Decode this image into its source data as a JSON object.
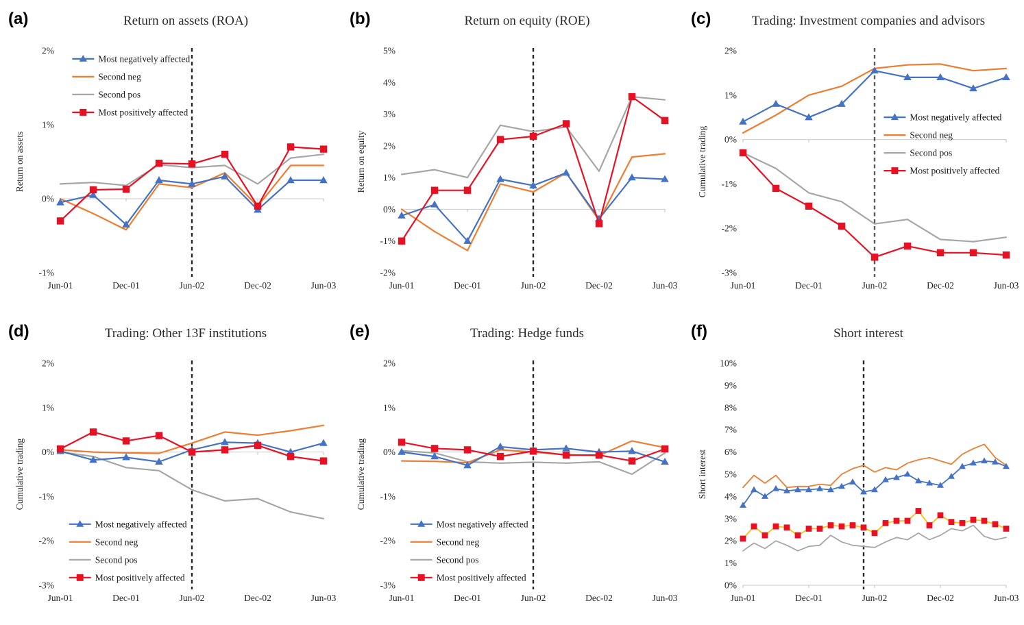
{
  "figure": {
    "background": "#ffffff",
    "event_line_style": "dashed"
  },
  "series_defs": [
    {
      "name": "Most negatively affected",
      "color": "#4472c4",
      "marker": "triangle"
    },
    {
      "name": "Second neg",
      "color": "#ed7d31",
      "marker": "none"
    },
    {
      "name": "Second pos",
      "color": "#a6a6a6",
      "marker": "none"
    },
    {
      "name": "Most positively affected",
      "color": "#e81123",
      "marker": "square"
    }
  ],
  "chart_data": [
    {
      "id": "a",
      "letter": "(a)",
      "type": "line",
      "title": "Return on assets (ROA)",
      "ylabel": "Return on assets",
      "ylim": [
        -1,
        2
      ],
      "yticks": [
        2,
        1,
        0,
        -1
      ],
      "categories": [
        "Jun-01",
        "Sep-01",
        "Dec-01",
        "Mar-02",
        "Jun-02",
        "Sep-02",
        "Dec-02",
        "Mar-03",
        "Jun-03"
      ],
      "x_ticks": {
        "indices": [
          0,
          2,
          4,
          6,
          8
        ],
        "labels": [
          "Jun-01",
          "Dec-01",
          "Jun-02",
          "Dec-02",
          "Jun-03"
        ]
      },
      "event_line_index": 4,
      "event_line_color": "#262626",
      "legend": "top-left",
      "series": [
        {
          "name": "Most negatively affected",
          "values": [
            -0.05,
            0.05,
            -0.35,
            0.25,
            0.2,
            0.3,
            -0.15,
            0.25,
            0.25
          ]
        },
        {
          "name": "Second neg",
          "values": [
            0.0,
            -0.2,
            -0.42,
            0.2,
            0.15,
            0.35,
            -0.1,
            0.45,
            0.45
          ]
        },
        {
          "name": "Second pos",
          "values": [
            0.2,
            0.22,
            0.18,
            0.46,
            0.42,
            0.45,
            0.2,
            0.55,
            0.6
          ]
        },
        {
          "name": "Most positively affected",
          "values": [
            -0.3,
            0.12,
            0.13,
            0.48,
            0.47,
            0.6,
            -0.1,
            0.7,
            0.67
          ]
        }
      ]
    },
    {
      "id": "b",
      "letter": "(b)",
      "type": "line",
      "title": "Return on equity (ROE)",
      "ylabel": "Return on equity",
      "ylim": [
        -2,
        5
      ],
      "yticks": [
        5,
        4,
        3,
        2,
        1,
        0,
        -1,
        -2
      ],
      "categories": [
        "Jun-01",
        "Sep-01",
        "Dec-01",
        "Mar-02",
        "Jun-02",
        "Sep-02",
        "Dec-02",
        "Mar-03",
        "Jun-03"
      ],
      "x_ticks": {
        "indices": [
          0,
          2,
          4,
          6,
          8
        ],
        "labels": [
          "Jun-01",
          "Dec-01",
          "Jun-02",
          "Dec-02",
          "Jun-03"
        ]
      },
      "event_line_index": 4,
      "event_line_color": "#262626",
      "legend": "none",
      "series": [
        {
          "name": "Most negatively affected",
          "values": [
            -0.2,
            0.15,
            -1.0,
            0.95,
            0.75,
            1.15,
            -0.3,
            1.0,
            0.95
          ]
        },
        {
          "name": "Second neg",
          "values": [
            0.0,
            -0.7,
            -1.3,
            0.8,
            0.55,
            1.15,
            -0.35,
            1.65,
            1.75
          ]
        },
        {
          "name": "Second pos",
          "values": [
            1.1,
            1.25,
            1.0,
            2.65,
            2.45,
            2.6,
            1.2,
            3.55,
            3.45
          ]
        },
        {
          "name": "Most positively affected",
          "values": [
            -1.0,
            0.6,
            0.6,
            2.2,
            2.3,
            2.7,
            -0.45,
            3.55,
            2.8
          ]
        }
      ]
    },
    {
      "id": "c",
      "letter": "(c)",
      "type": "line",
      "title": "Trading: Investment companies and advisors",
      "ylabel": "Cumulative trading",
      "ylim": [
        -3,
        2
      ],
      "yticks": [
        2,
        1,
        0,
        -1,
        -2,
        -3
      ],
      "categories": [
        "Jun-01",
        "Sep-01",
        "Dec-01",
        "Mar-02",
        "Jun-02",
        "Sep-02",
        "Dec-02",
        "Mar-03",
        "Jun-03"
      ],
      "x_ticks": {
        "indices": [
          0,
          2,
          4,
          6,
          8
        ],
        "labels": [
          "Jun-01",
          "Dec-01",
          "Jun-02",
          "Dec-02",
          "Jun-03"
        ]
      },
      "event_line_index": 4,
      "event_line_color": "#595959",
      "legend": "middle-right",
      "series": [
        {
          "name": "Most negatively affected",
          "values": [
            0.4,
            0.8,
            0.5,
            0.8,
            1.55,
            1.4,
            1.4,
            1.15,
            1.4
          ]
        },
        {
          "name": "Second neg",
          "values": [
            0.15,
            0.55,
            1.0,
            1.2,
            1.6,
            1.68,
            1.7,
            1.55,
            1.6
          ]
        },
        {
          "name": "Second pos",
          "values": [
            -0.3,
            -0.65,
            -1.2,
            -1.4,
            -1.9,
            -1.8,
            -2.25,
            -2.3,
            -2.2
          ]
        },
        {
          "name": "Most positively affected",
          "values": [
            -0.3,
            -1.1,
            -1.5,
            -1.95,
            -2.65,
            -2.4,
            -2.55,
            -2.55,
            -2.6
          ]
        }
      ]
    },
    {
      "id": "d",
      "letter": "(d)",
      "type": "line",
      "title": "Trading: Other 13F institutions",
      "ylabel": "Cumulative trading",
      "ylim": [
        -3,
        2
      ],
      "yticks": [
        2,
        1,
        0,
        -1,
        -2,
        -3
      ],
      "categories": [
        "Jun-01",
        "Sep-01",
        "Dec-01",
        "Mar-02",
        "Jun-02",
        "Sep-02",
        "Dec-02",
        "Mar-03",
        "Jun-03"
      ],
      "x_ticks": {
        "indices": [
          0,
          2,
          4,
          6,
          8
        ],
        "labels": [
          "Jun-01",
          "Dec-01",
          "Jun-02",
          "Dec-02",
          "Jun-03"
        ]
      },
      "event_line_index": 4,
      "event_line_color": "#262626",
      "legend": "bottom-left",
      "series": [
        {
          "name": "Most negatively affected",
          "values": [
            0.02,
            -0.18,
            -0.12,
            -0.22,
            0.05,
            0.22,
            0.2,
            0.0,
            0.2
          ]
        },
        {
          "name": "Second neg",
          "values": [
            0.05,
            0.0,
            -0.02,
            -0.03,
            0.2,
            0.45,
            0.38,
            0.48,
            0.6
          ]
        },
        {
          "name": "Second pos",
          "values": [
            0.0,
            -0.1,
            -0.35,
            -0.42,
            -0.85,
            -1.1,
            -1.05,
            -1.35,
            -1.5
          ]
        },
        {
          "name": "Most positively affected",
          "values": [
            0.07,
            0.45,
            0.25,
            0.37,
            0.0,
            0.05,
            0.15,
            -0.1,
            -0.2
          ]
        }
      ]
    },
    {
      "id": "e",
      "letter": "(e)",
      "type": "line",
      "title": "Trading: Hedge funds",
      "ylabel": "Cumulative trading",
      "ylim": [
        -3,
        2
      ],
      "yticks": [
        2,
        1,
        0,
        -1,
        -2,
        -3
      ],
      "categories": [
        "Jun-01",
        "Sep-01",
        "Dec-01",
        "Mar-02",
        "Jun-02",
        "Sep-02",
        "Dec-02",
        "Mar-03",
        "Jun-03"
      ],
      "x_ticks": {
        "indices": [
          0,
          2,
          4,
          6,
          8
        ],
        "labels": [
          "Jun-01",
          "Dec-01",
          "Jun-02",
          "Dec-02",
          "Jun-03"
        ]
      },
      "event_line_index": 4,
      "event_line_color": "#262626",
      "legend": "bottom-left",
      "series": [
        {
          "name": "Most negatively affected",
          "values": [
            0.0,
            -0.1,
            -0.3,
            0.12,
            0.05,
            0.08,
            0.0,
            0.02,
            -0.22
          ]
        },
        {
          "name": "Second neg",
          "values": [
            -0.2,
            -0.21,
            -0.24,
            0.05,
            0.0,
            -0.06,
            -0.08,
            0.25,
            0.1
          ]
        },
        {
          "name": "Second pos",
          "values": [
            0.03,
            -0.02,
            -0.22,
            -0.25,
            -0.23,
            -0.25,
            -0.22,
            -0.5,
            -0.02
          ]
        },
        {
          "name": "Most positively affected",
          "values": [
            0.22,
            0.08,
            0.05,
            -0.1,
            0.02,
            -0.07,
            -0.07,
            -0.2,
            0.07
          ]
        }
      ]
    },
    {
      "id": "f",
      "letter": "(f)",
      "type": "line",
      "title": "Short interest",
      "ylabel": "Short interest",
      "ylim": [
        0,
        10
      ],
      "yticks": [
        10,
        9,
        8,
        7,
        6,
        5,
        4,
        3,
        2,
        1,
        0
      ],
      "categories": [
        "Jun-01",
        "Jul-01",
        "Aug-01",
        "Sep-01",
        "Oct-01",
        "Nov-01",
        "Dec-01",
        "Jan-02",
        "Feb-02",
        "Mar-02",
        "Apr-02",
        "May-02",
        "Jun-02",
        "Jul-02",
        "Aug-02",
        "Sep-02",
        "Oct-02",
        "Nov-02",
        "Dec-02",
        "Jan-03",
        "Feb-03",
        "Mar-03",
        "Apr-03",
        "May-03",
        "Jun-03"
      ],
      "x_ticks": {
        "indices": [
          0,
          6,
          12,
          18,
          24
        ],
        "labels": [
          "Jun-01",
          "Dec-01",
          "Jun-02",
          "Dec-02",
          "Jun-03"
        ]
      },
      "event_line_index": 11,
      "event_line_color": "#262626",
      "legend": "none",
      "series": [
        {
          "name": "Most negatively affected",
          "values": [
            3.6,
            4.3,
            4.0,
            4.35,
            4.25,
            4.3,
            4.3,
            4.35,
            4.3,
            4.45,
            4.65,
            4.2,
            4.3,
            4.75,
            4.85,
            5.0,
            4.7,
            4.6,
            4.5,
            4.9,
            5.35,
            5.5,
            5.6,
            5.55,
            5.35
          ]
        },
        {
          "name": "Second neg",
          "values": [
            4.4,
            4.95,
            4.6,
            4.95,
            4.4,
            4.45,
            4.45,
            4.55,
            4.5,
            5.0,
            5.25,
            5.4,
            5.1,
            5.3,
            5.2,
            5.5,
            5.65,
            5.75,
            5.6,
            5.45,
            5.9,
            6.15,
            6.35,
            5.75,
            5.4
          ]
        },
        {
          "name": "Second pos",
          "values": [
            1.55,
            1.9,
            1.65,
            2.0,
            1.8,
            1.55,
            1.75,
            1.8,
            2.25,
            1.95,
            1.8,
            1.75,
            1.7,
            1.95,
            2.15,
            2.05,
            2.35,
            2.05,
            2.25,
            2.55,
            2.45,
            2.7,
            2.2,
            2.05,
            2.15
          ]
        },
        {
          "name": "Most positively affected",
          "line_color": "#ffc000",
          "values": [
            2.1,
            2.65,
            2.25,
            2.65,
            2.6,
            2.25,
            2.55,
            2.55,
            2.7,
            2.65,
            2.7,
            2.6,
            2.35,
            2.8,
            2.9,
            2.9,
            3.35,
            2.7,
            3.15,
            2.85,
            2.8,
            2.95,
            2.9,
            2.75,
            2.55
          ]
        }
      ]
    }
  ]
}
